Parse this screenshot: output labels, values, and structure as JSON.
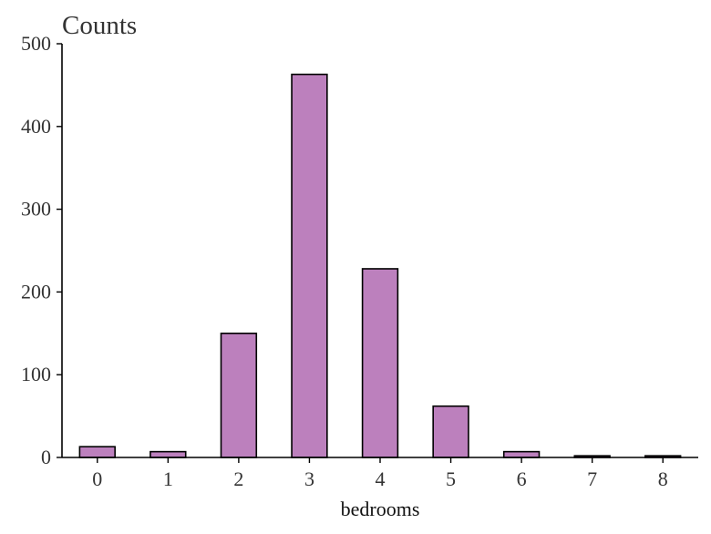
{
  "chart_data": {
    "type": "bar",
    "title": "Counts",
    "xlabel": "bedrooms",
    "ylabel": "",
    "categories": [
      "0",
      "1",
      "2",
      "3",
      "4",
      "5",
      "6",
      "7",
      "8"
    ],
    "values": [
      13,
      7,
      150,
      463,
      228,
      62,
      7,
      2,
      2
    ],
    "ylim": [
      0,
      500
    ],
    "yticks": [
      "0",
      "100",
      "200",
      "300",
      "400",
      "500"
    ],
    "grid": false,
    "legend": "none",
    "colors": {
      "bar_fill": "#bc80bd",
      "bar_edge": "#000000",
      "axis": "#000000"
    }
  }
}
